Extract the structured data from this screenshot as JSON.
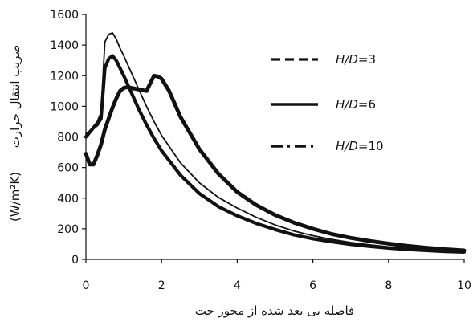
{
  "chart_data": {
    "type": "line",
    "title": "",
    "xlabel": "فاصله بی بعد شده از محور جت",
    "ylabel_text": "ضریب انتقال حرارت",
    "ylabel_unit": "(W/m²K)",
    "xlim": [
      0,
      10
    ],
    "ylim": [
      0,
      1600
    ],
    "x_ticks": [
      "0",
      "2",
      "4",
      "6",
      "8",
      "10"
    ],
    "y_ticks": [
      "0",
      "200",
      "400",
      "600",
      "800",
      "1000",
      "1200",
      "1400",
      "1600"
    ],
    "grid": false,
    "legend_position": "right",
    "colors": {
      "axis": "#111111",
      "series": "#111111"
    },
    "series": [
      {
        "name": "H/D=3",
        "name_italic": "H/D",
        "name_suffix": "=3",
        "dash": "dashed",
        "x": [
          0.0,
          0.1,
          0.2,
          0.3,
          0.4,
          0.5,
          0.6,
          0.7,
          0.8,
          0.9,
          1.0,
          1.2,
          1.4,
          1.6,
          1.8,
          2.0,
          2.5,
          3.0,
          3.5,
          4.0,
          4.5,
          5.0,
          5.5,
          6.0,
          6.5,
          7.0,
          7.5,
          8.0,
          8.5,
          9.0,
          9.5,
          10.0
        ],
        "y": [
          820,
          840,
          870,
          900,
          960,
          1420,
          1470,
          1480,
          1440,
          1380,
          1330,
          1220,
          1110,
          1000,
          900,
          810,
          630,
          500,
          405,
          335,
          275,
          225,
          185,
          155,
          130,
          110,
          95,
          82,
          72,
          63,
          57,
          52
        ]
      },
      {
        "name": "H/D=6",
        "name_italic": "H/D",
        "name_suffix": "=6",
        "dash": "solid",
        "x": [
          0.0,
          0.1,
          0.2,
          0.3,
          0.4,
          0.5,
          0.6,
          0.7,
          0.8,
          0.9,
          1.0,
          1.2,
          1.4,
          1.6,
          1.8,
          2.0,
          2.5,
          3.0,
          3.5,
          4.0,
          4.5,
          5.0,
          5.5,
          6.0,
          6.5,
          7.0,
          7.5,
          8.0,
          8.5,
          9.0,
          9.5,
          10.0
        ],
        "y": [
          800,
          830,
          860,
          880,
          920,
          1250,
          1310,
          1330,
          1300,
          1250,
          1200,
          1090,
          980,
          880,
          790,
          710,
          550,
          430,
          345,
          285,
          235,
          195,
          160,
          135,
          115,
          98,
          85,
          74,
          65,
          58,
          52,
          48
        ]
      },
      {
        "name": "H/D=10",
        "name_italic": "H/D",
        "name_suffix": "=10",
        "dash": "dashdot",
        "x": [
          0.0,
          0.1,
          0.2,
          0.3,
          0.4,
          0.5,
          0.6,
          0.7,
          0.8,
          0.9,
          1.0,
          1.1,
          1.2,
          1.4,
          1.6,
          1.8,
          1.9,
          2.0,
          2.2,
          2.5,
          3.0,
          3.5,
          4.0,
          4.5,
          5.0,
          5.5,
          6.0,
          6.5,
          7.0,
          7.5,
          8.0,
          8.5,
          9.0,
          9.5,
          10.0
        ],
        "y": [
          690,
          620,
          620,
          680,
          750,
          850,
          920,
          990,
          1050,
          1100,
          1120,
          1125,
          1120,
          1110,
          1100,
          1200,
          1195,
          1180,
          1100,
          930,
          720,
          560,
          440,
          355,
          290,
          240,
          200,
          165,
          140,
          120,
          103,
          88,
          76,
          66,
          58
        ]
      }
    ]
  }
}
